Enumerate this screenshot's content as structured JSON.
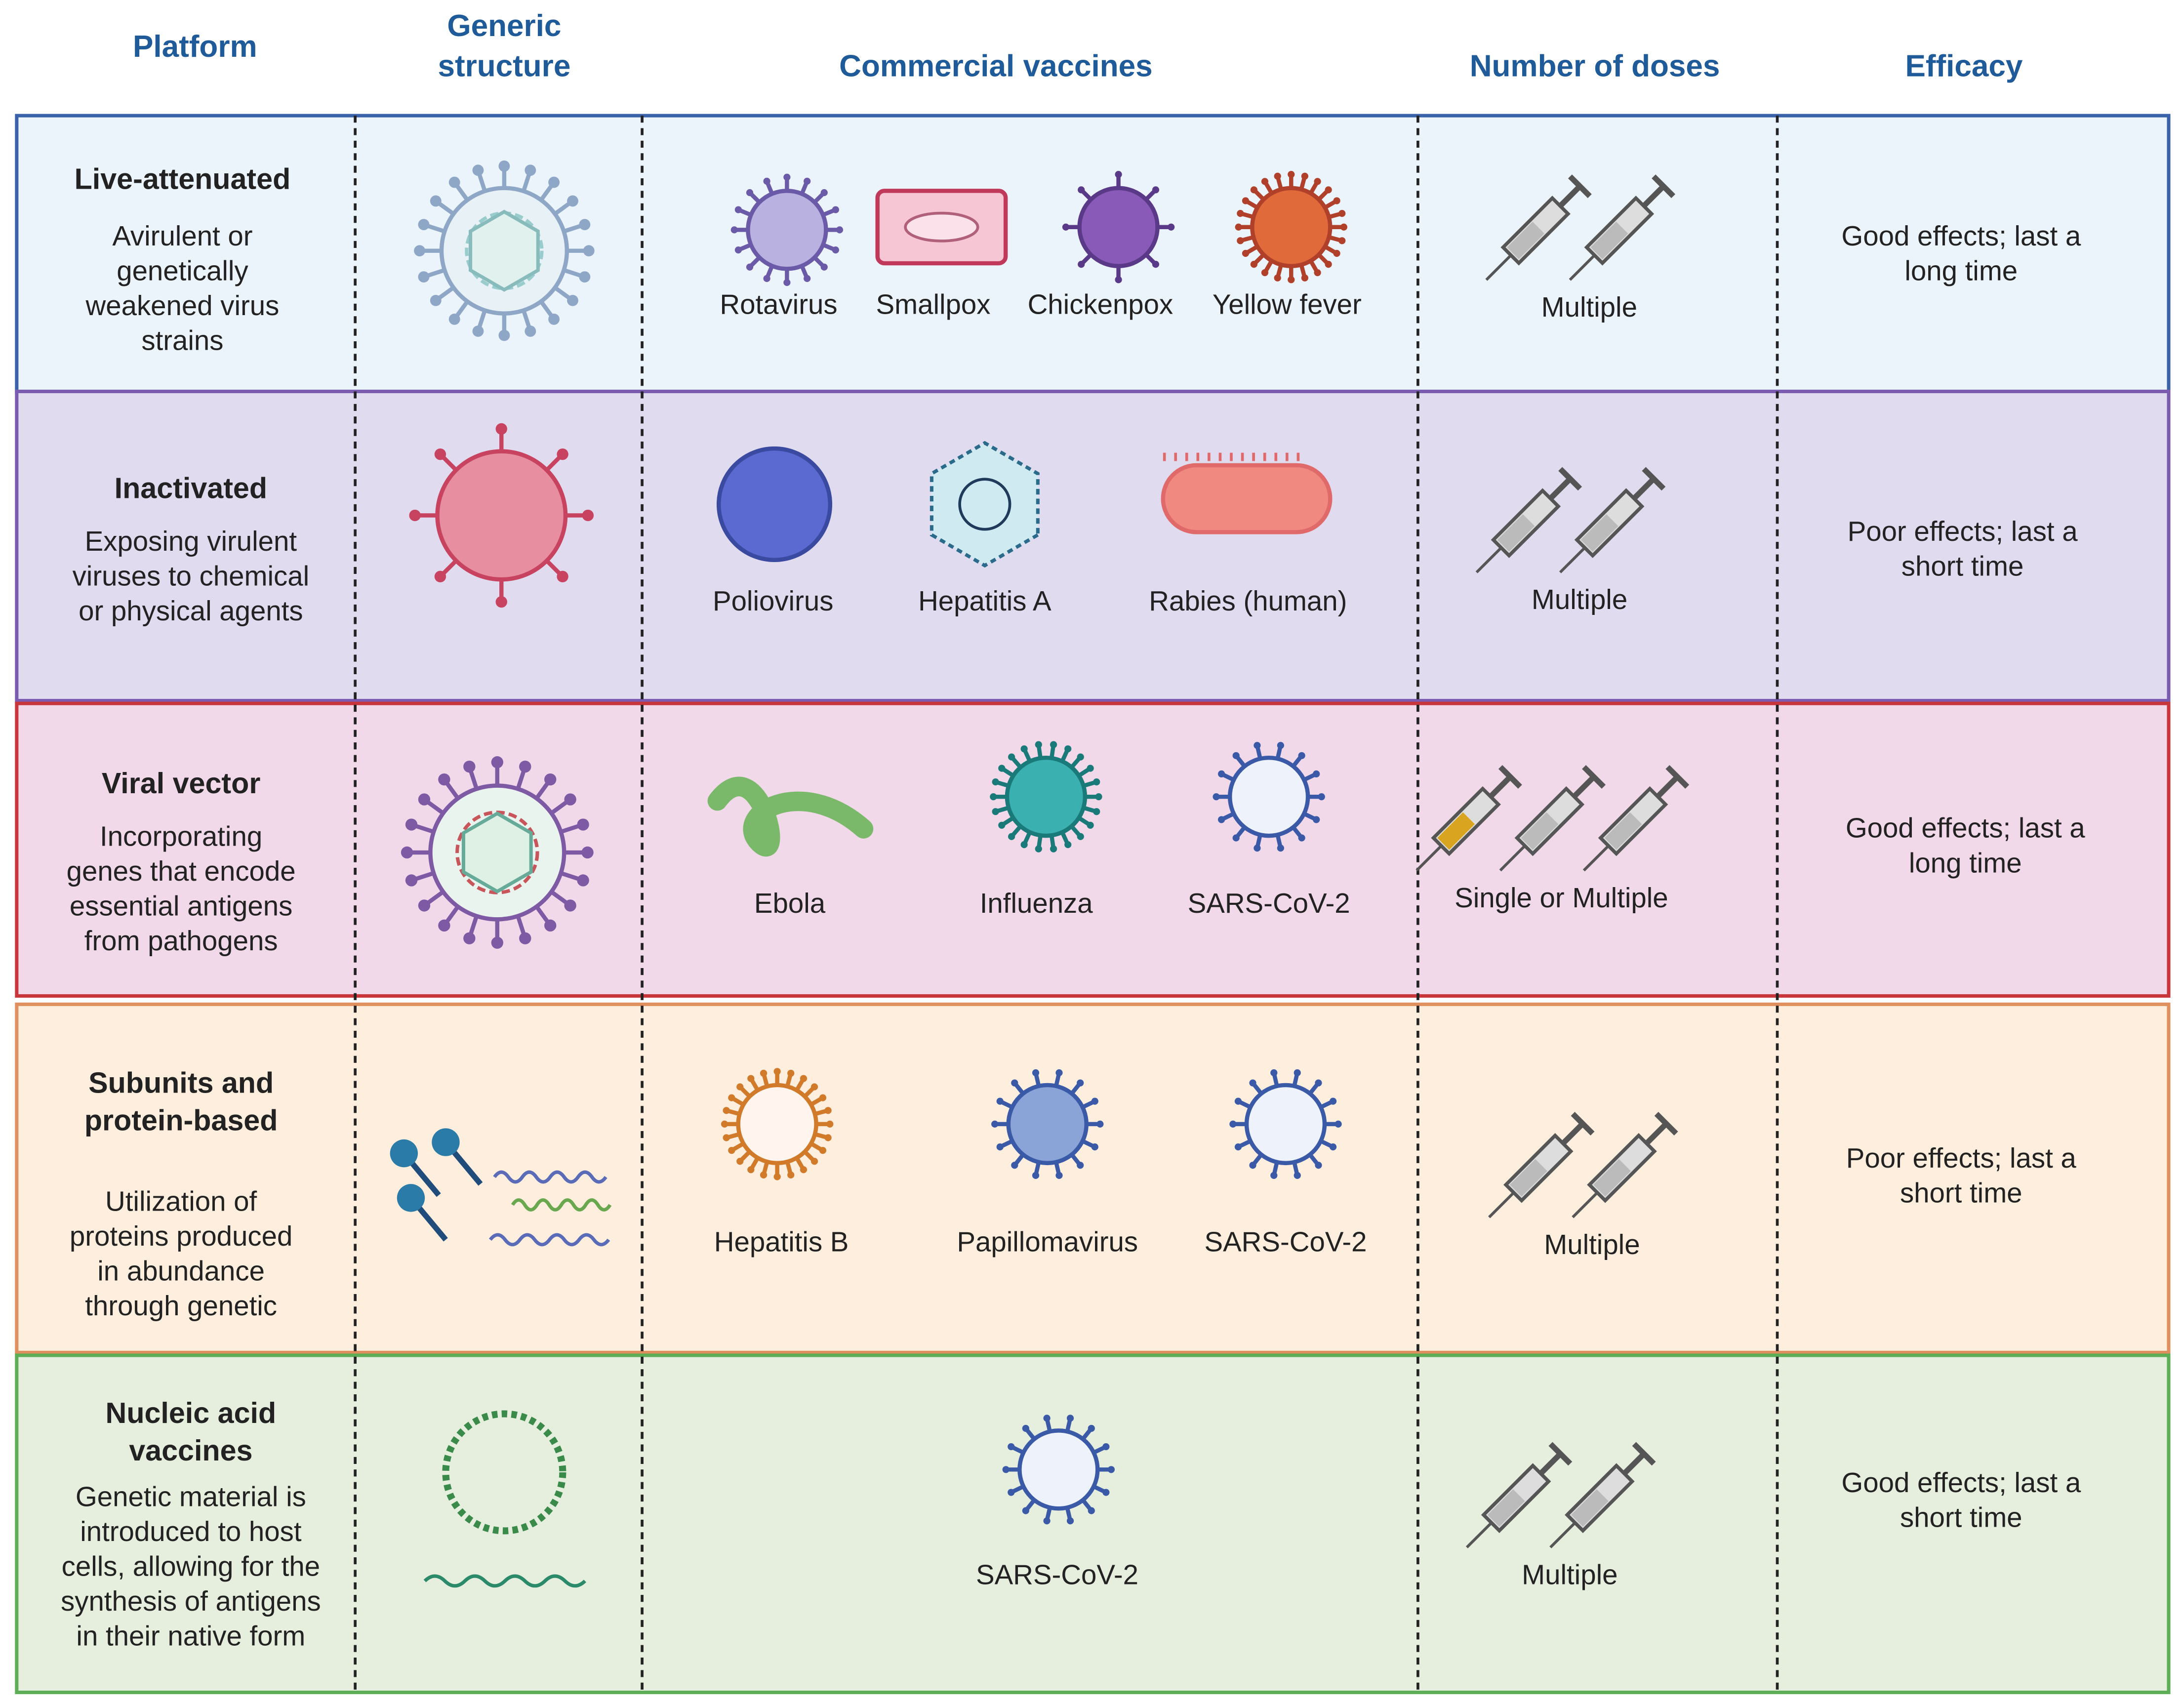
{
  "headers": [
    "Platform",
    [
      "Generic",
      "structure"
    ],
    "Commercial vaccines",
    "Number of doses",
    "Efficacy"
  ],
  "rows": [
    {
      "platform": [
        "Live-attenuated"
      ],
      "description": [
        "Avirulent or",
        "genetically",
        "weakened virus",
        "strains"
      ],
      "vaccines": [
        "Rotavirus",
        "Smallpox",
        "Chickenpox",
        "Yellow fever"
      ],
      "doses": "Multiple",
      "efficacy": [
        "Good effects; last a",
        "long time"
      ]
    },
    {
      "platform": [
        "Inactivated"
      ],
      "description": [
        "Exposing virulent",
        "viruses to chemical",
        "or physical agents"
      ],
      "vaccines": [
        "Poliovirus",
        "Hepatitis A",
        "Rabies (human)"
      ],
      "doses": "Multiple",
      "efficacy": [
        "Poor effects; last a",
        "short time"
      ]
    },
    {
      "platform": [
        "Viral vector"
      ],
      "description": [
        "Incorporating",
        "genes that encode",
        "essential antigens",
        "from pathogens"
      ],
      "vaccines": [
        "Ebola",
        "Influenza",
        "SARS-CoV-2"
      ],
      "doses": "Single or Multiple",
      "efficacy": [
        "Good effects; last a",
        "long time"
      ]
    },
    {
      "platform": [
        "Subunits and",
        "protein-based"
      ],
      "description": [
        "Utilization of",
        "proteins produced",
        "in abundance",
        "through genetic"
      ],
      "vaccines": [
        "Hepatitis B",
        "Papillomavirus",
        "SARS-CoV-2"
      ],
      "doses": "Multiple",
      "efficacy": [
        "Poor effects; last a",
        "short time"
      ]
    },
    {
      "platform": [
        "Nucleic acid",
        "vaccines"
      ],
      "description": [
        "Genetic material is",
        "introduced to host",
        "cells, allowing for the",
        "synthesis of antigens",
        "in their native form"
      ],
      "vaccines": [
        "SARS-CoV-2"
      ],
      "doses": "Multiple",
      "efficacy": [
        "Good effects; last a",
        "short time"
      ]
    }
  ]
}
